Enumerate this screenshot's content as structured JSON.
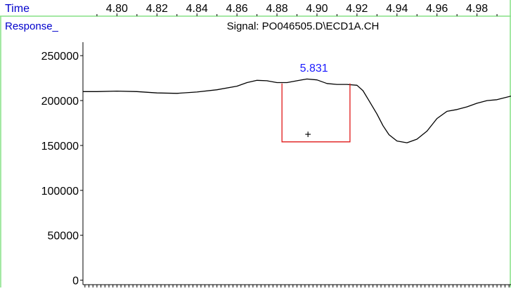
{
  "chart_data": {
    "type": "line",
    "title": "Signal: PO046505.D\\ECD1A.CH",
    "xlabel": "Time",
    "ylabel": "Response_",
    "xlim": [
      4.783,
      4.997
    ],
    "ylim": [
      -5000,
      265000
    ],
    "x_ticks": [
      4.8,
      4.82,
      4.84,
      4.86,
      4.88,
      4.9,
      4.92,
      4.94,
      4.96,
      4.98
    ],
    "x_tick_labels": [
      "4.80",
      "4.82",
      "4.84",
      "4.86",
      "4.88",
      "4.90",
      "4.92",
      "4.94",
      "4.96",
      "4.98"
    ],
    "y_ticks": [
      0,
      50000,
      100000,
      150000,
      200000,
      250000
    ],
    "y_tick_labels": [
      "0",
      "50000",
      "100000",
      "150000",
      "200000",
      "250000"
    ],
    "grid": false,
    "series": [
      {
        "color": "#000000",
        "x": [
          4.783,
          4.79,
          4.8,
          4.81,
          4.82,
          4.83,
          4.84,
          4.85,
          4.86,
          4.865,
          4.87,
          4.875,
          4.88,
          4.885,
          4.89,
          4.895,
          4.9,
          4.905,
          4.91,
          4.915,
          4.92,
          4.923,
          4.926,
          4.93,
          4.933,
          4.936,
          4.94,
          4.945,
          4.95,
          4.955,
          4.96,
          4.965,
          4.97,
          4.975,
          4.98,
          4.985,
          4.99,
          4.997
        ],
        "y": [
          210000,
          210000,
          210500,
          210000,
          208500,
          208000,
          209500,
          212000,
          216000,
          220000,
          222500,
          222000,
          220000,
          220000,
          222000,
          224000,
          223000,
          219000,
          218000,
          218000,
          217000,
          211000,
          200000,
          185000,
          172000,
          162000,
          155000,
          153000,
          157000,
          166000,
          180000,
          188000,
          190000,
          193000,
          197000,
          200000,
          201000,
          205000
        ]
      }
    ],
    "annotations": [
      {
        "type": "text",
        "label": "5.831",
        "x": 4.8985,
        "y": 232000,
        "color": "#1a1aff"
      },
      {
        "type": "integration-box",
        "x_start": 4.8825,
        "x_end": 4.9165,
        "y_top": 219000,
        "y_bottom": 154000,
        "color": "#e01818"
      },
      {
        "type": "marker",
        "label": "+",
        "x": 4.8955,
        "y": 162000,
        "color": "#000000"
      }
    ],
    "colors": {
      "axis_title": "#0000cc",
      "frame": "#86e086",
      "trace": "#000000",
      "peak_label": "#1a1aff",
      "integration": "#e01818"
    }
  }
}
